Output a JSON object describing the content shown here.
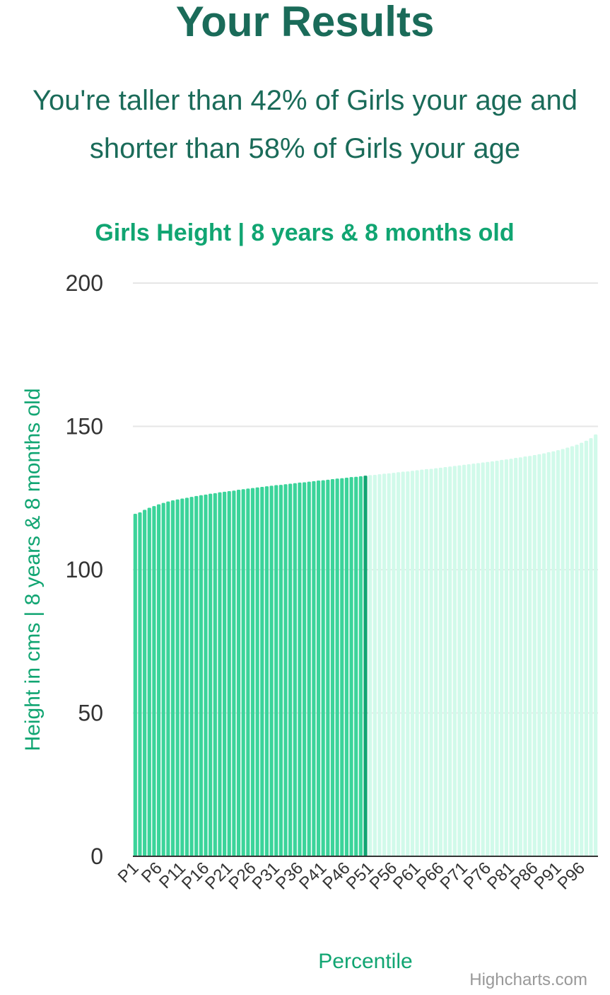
{
  "page": {
    "title": "Your Results",
    "summary_line1": "You're taller than 42% of Girls your age and",
    "summary_line2": "shorter than 58% of Girls your age"
  },
  "chart_data": {
    "type": "bar",
    "title": "Girls Height | 8 years & 8 months old",
    "xlabel": "Percentile",
    "ylabel": "Height in cms | 8 years & 8 months old",
    "ylim": [
      0,
      200
    ],
    "yticks": [
      0,
      50,
      100,
      150,
      200
    ],
    "grid": true,
    "x_label_every": 5,
    "categories": [
      "P1",
      "P2",
      "P3",
      "P4",
      "P5",
      "P6",
      "P7",
      "P8",
      "P9",
      "P10",
      "P11",
      "P12",
      "P13",
      "P14",
      "P15",
      "P16",
      "P17",
      "P18",
      "P19",
      "P20",
      "P21",
      "P22",
      "P23",
      "P24",
      "P25",
      "P26",
      "P27",
      "P28",
      "P29",
      "P30",
      "P31",
      "P32",
      "P33",
      "P34",
      "P35",
      "P36",
      "P37",
      "P38",
      "P39",
      "P40",
      "P41",
      "P42",
      "P43",
      "P44",
      "P45",
      "P46",
      "P47",
      "P48",
      "P49",
      "P50",
      "P51",
      "P52",
      "P53",
      "P54",
      "P55",
      "P56",
      "P57",
      "P58",
      "P59",
      "P60",
      "P61",
      "P62",
      "P63",
      "P64",
      "P65",
      "P66",
      "P67",
      "P68",
      "P69",
      "P70",
      "P71",
      "P72",
      "P73",
      "P74",
      "P75",
      "P76",
      "P77",
      "P78",
      "P79",
      "P80",
      "P81",
      "P82",
      "P83",
      "P84",
      "P85",
      "P86",
      "P87",
      "P88",
      "P89",
      "P90",
      "P91",
      "P92",
      "P93",
      "P94",
      "P95",
      "P96",
      "P97",
      "P98",
      "P99"
    ],
    "values": [
      119.5,
      120.0,
      120.9,
      121.6,
      122.2,
      122.8,
      123.3,
      123.8,
      124.2,
      124.5,
      124.8,
      125.1,
      125.4,
      125.7,
      126.0,
      126.2,
      126.5,
      126.7,
      127.0,
      127.2,
      127.4,
      127.6,
      127.9,
      128.1,
      128.3,
      128.5,
      128.7,
      128.9,
      129.1,
      129.3,
      129.5,
      129.6,
      129.8,
      130.0,
      130.2,
      130.4,
      130.5,
      130.7,
      130.9,
      131.1,
      131.2,
      131.4,
      131.6,
      131.8,
      131.9,
      132.1,
      132.3,
      132.4,
      132.6,
      132.8,
      133.0,
      133.1,
      133.3,
      133.5,
      133.6,
      133.8,
      134.0,
      134.2,
      134.3,
      134.5,
      134.7,
      134.9,
      135.1,
      135.2,
      135.4,
      135.6,
      135.8,
      136.0,
      136.2,
      136.4,
      136.6,
      136.8,
      137.0,
      137.2,
      137.4,
      137.6,
      137.8,
      138.0,
      138.3,
      138.5,
      138.7,
      139.0,
      139.2,
      139.5,
      139.7,
      140.0,
      140.3,
      140.6,
      141.0,
      141.3,
      141.7,
      142.1,
      142.6,
      143.1,
      143.6,
      144.3,
      145.0,
      145.9,
      147.2
    ],
    "highlight_index": 49,
    "colors": {
      "filled": "#3bd49a",
      "current": "#11a572",
      "rest": "#d1faea"
    }
  },
  "credits": {
    "text": "Highcharts.com"
  }
}
